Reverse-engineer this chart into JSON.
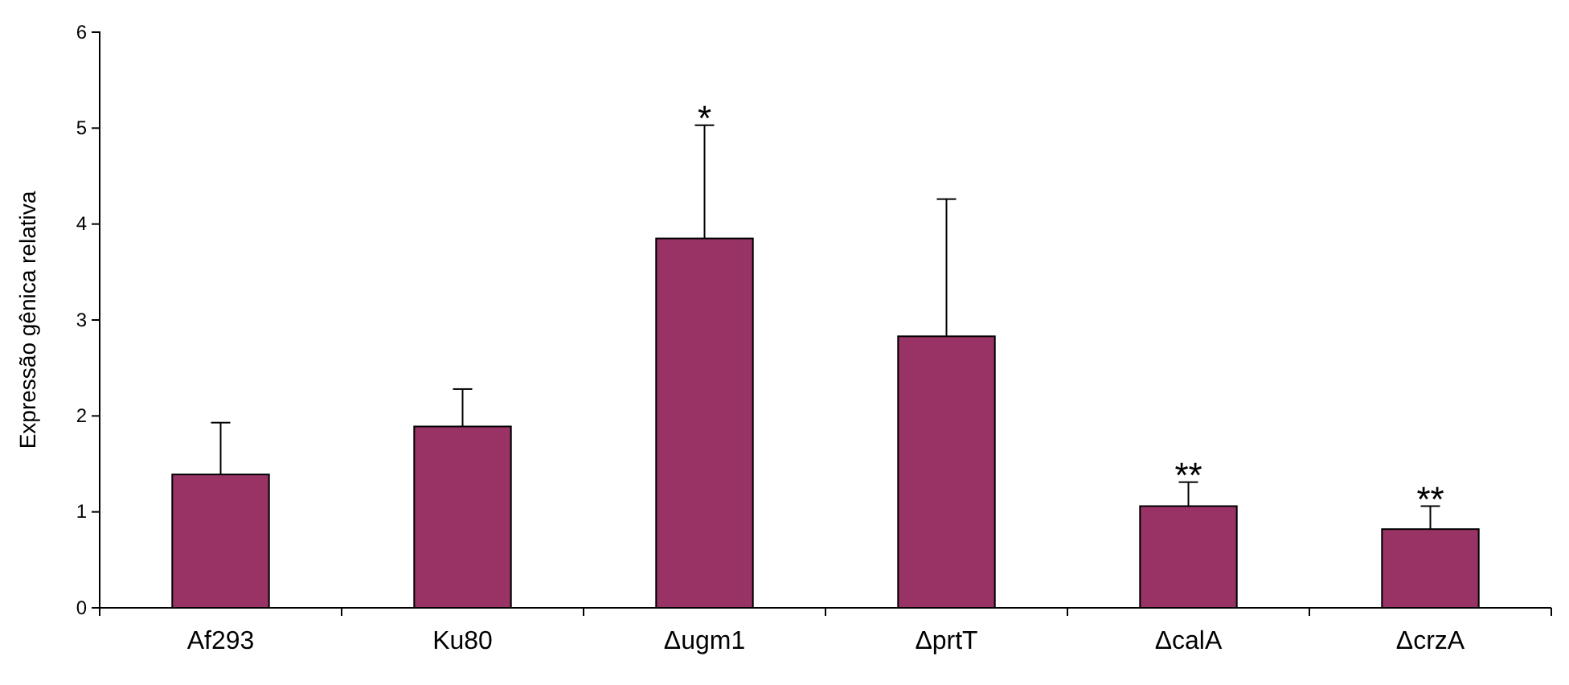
{
  "chart_data": {
    "type": "bar",
    "ylabel": "Expressão gênica relativa",
    "categories": [
      "Af293",
      "Ku80",
      "Δugm1",
      "ΔprtT",
      "ΔcalA",
      "ΔcrzA"
    ],
    "values": [
      1.39,
      1.89,
      3.85,
      2.83,
      1.06,
      0.82
    ],
    "errors": [
      [
        1.39,
        1.93
      ],
      [
        1.89,
        2.28
      ],
      [
        3.85,
        5.03
      ],
      [
        2.83,
        4.26
      ],
      [
        1.06,
        1.31
      ],
      [
        0.82,
        1.06
      ]
    ],
    "color": "#993366",
    "ylim": [
      0,
      6
    ],
    "yticks": [
      0,
      1,
      2,
      3,
      4,
      5,
      6
    ],
    "grid": false,
    "annotations": [
      {
        "text": "*",
        "x": "Δugm1",
        "y": 5.03
      },
      {
        "text": "**",
        "x": "ΔcalA",
        "y": 1.31
      },
      {
        "text": "**",
        "x": "ΔcrzA",
        "y": 1.06
      }
    ]
  }
}
